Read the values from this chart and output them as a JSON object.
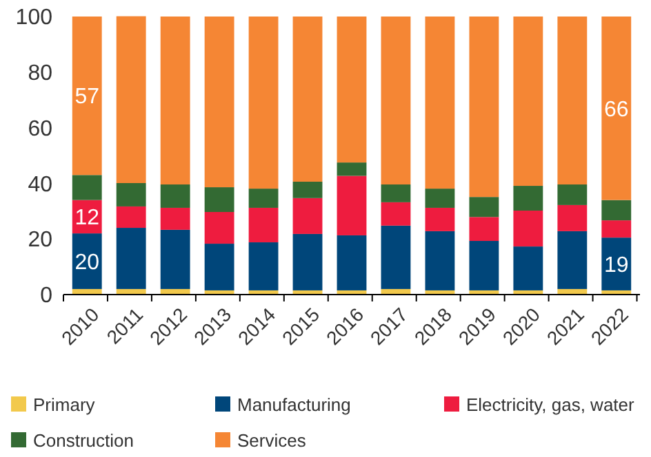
{
  "chart_data": {
    "type": "bar",
    "stacked": true,
    "categories": [
      "2010",
      "2011",
      "2012",
      "2013",
      "2014",
      "2015",
      "2016",
      "2017",
      "2018",
      "2019",
      "2020",
      "2021",
      "2022"
    ],
    "series": [
      {
        "name": "Primary",
        "color": "#f2c94c",
        "values": [
          2,
          2,
          2,
          1.5,
          1.5,
          1.5,
          1.5,
          2,
          1.5,
          1.5,
          1.5,
          2,
          1.5
        ]
      },
      {
        "name": "Manufacturing",
        "color": "#00467a",
        "values": [
          20,
          22,
          21.3,
          16.8,
          17.3,
          20.3,
          19.8,
          22.8,
          21.3,
          17.8,
          15.8,
          20.8,
          19
        ],
        "value_labels": [
          "20",
          null,
          null,
          null,
          null,
          null,
          null,
          null,
          null,
          null,
          null,
          null,
          "19"
        ]
      },
      {
        "name": "Electricity, gas, water",
        "color": "#ee1c3f",
        "values": [
          12,
          7.7,
          7.9,
          11.4,
          12.4,
          12.9,
          21.4,
          8.4,
          8.4,
          8.6,
          12.9,
          9.4,
          6.2
        ],
        "value_labels": [
          "12",
          null,
          null,
          null,
          null,
          null,
          null,
          null,
          null,
          null,
          null,
          null,
          null
        ]
      },
      {
        "name": "Construction",
        "color": "#336a33",
        "values": [
          9,
          8.4,
          8.4,
          8.9,
          6.9,
          5.9,
          4.8,
          6.4,
          6.9,
          7.2,
          8.9,
          7.4,
          7.3
        ]
      },
      {
        "name": "Services",
        "color": "#f58634",
        "values": [
          57,
          60,
          60.4,
          61.4,
          61.9,
          59.4,
          52.5,
          60.4,
          61.9,
          64.9,
          60.9,
          60.4,
          66
        ],
        "value_labels": [
          "57",
          null,
          null,
          null,
          null,
          null,
          null,
          null,
          null,
          null,
          null,
          null,
          "66"
        ]
      }
    ],
    "ylim": [
      0,
      100
    ],
    "yticks": [
      0,
      20,
      40,
      60,
      80,
      100
    ],
    "legend": "bottom"
  }
}
